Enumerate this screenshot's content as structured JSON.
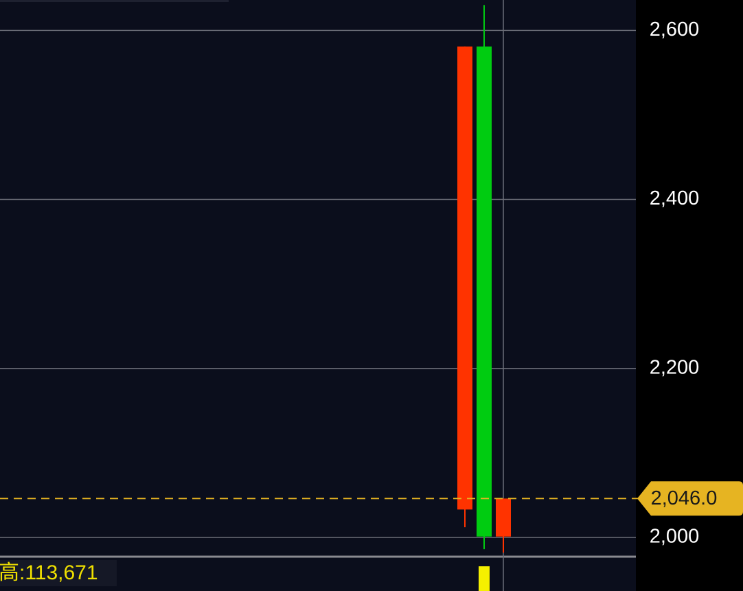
{
  "chart_data": {
    "type": "candlestick",
    "ylim": [
      1978,
      2636
    ],
    "yticks": [
      {
        "value": 2000,
        "label": "2,000"
      },
      {
        "value": 2200,
        "label": "2,200"
      },
      {
        "value": 2400,
        "label": "2,400"
      },
      {
        "value": 2600,
        "label": "2,600"
      }
    ],
    "grid": true,
    "candles": [
      {
        "open": 2033,
        "high": 2581,
        "low": 2012,
        "close": 2581,
        "color": "#ff3300"
      },
      {
        "open": 2581,
        "high": 2630,
        "low": 1986,
        "close": 2001,
        "color": "#00cc11"
      },
      {
        "open": 2001,
        "high": 2046,
        "low": 1982,
        "close": 2046,
        "color": "#ff3300"
      }
    ],
    "last_price": {
      "value": 2046,
      "label": "2,046.0"
    },
    "last_price_color": "#e6b422",
    "volume_label": "高:113,671"
  }
}
